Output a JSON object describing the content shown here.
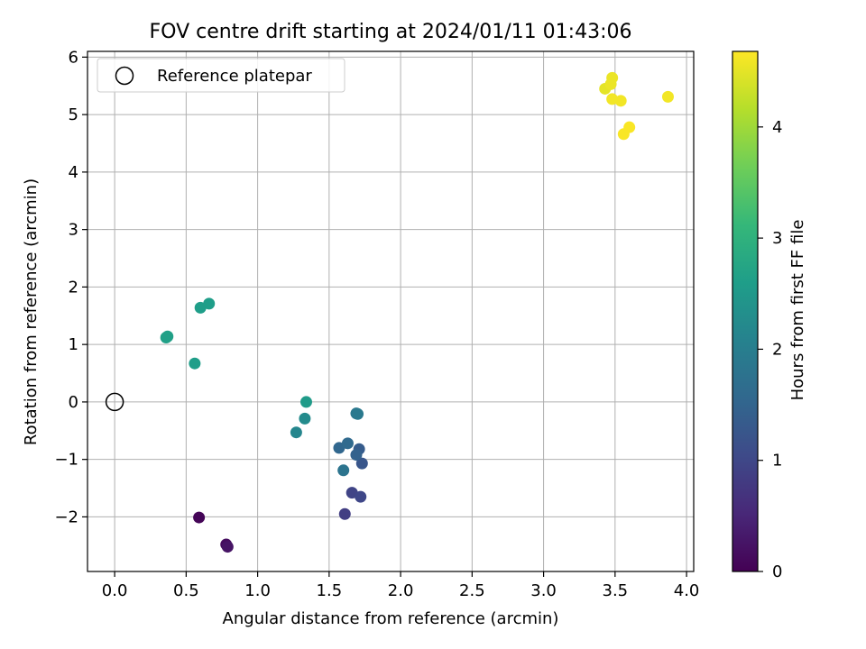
{
  "chart_data": {
    "type": "scatter",
    "title": "FOV centre drift starting at 2024/01/11 01:43:06",
    "xlabel": "Angular distance from reference (arcmin)",
    "ylabel": "Rotation from reference (arcmin)",
    "xlim": [
      -0.19,
      4.05
    ],
    "ylim": [
      -2.95,
      6.1
    ],
    "xticks": [
      0.0,
      0.5,
      1.0,
      1.5,
      2.0,
      2.5,
      3.0,
      3.5,
      4.0
    ],
    "xtick_labels": [
      "0.0",
      "0.5",
      "1.0",
      "1.5",
      "2.0",
      "2.5",
      "3.0",
      "3.5",
      "4.0"
    ],
    "yticks": [
      -2,
      -1,
      0,
      1,
      2,
      3,
      4,
      5,
      6
    ],
    "ytick_labels": [
      "−2",
      "−1",
      "0",
      "1",
      "2",
      "3",
      "4",
      "5",
      "6"
    ],
    "grid": true,
    "legend": {
      "location": "upper-left",
      "entries": [
        "Reference platepar"
      ]
    },
    "reference_point": {
      "x": 0.0,
      "y": 0.0,
      "label": "Reference platepar"
    },
    "colorbar": {
      "label": "Hours from first FF file",
      "range": [
        0,
        4.68
      ],
      "colormap": "viridis",
      "ticks": [
        0,
        1,
        2,
        3,
        4
      ],
      "tick_labels": [
        "0",
        "1",
        "2",
        "3",
        "4"
      ]
    },
    "points": [
      {
        "x": 0.59,
        "y": -2.01,
        "c": 0.05
      },
      {
        "x": 0.78,
        "y": -2.48,
        "c": 0.15
      },
      {
        "x": 0.79,
        "y": -2.52,
        "c": 0.25
      },
      {
        "x": 1.61,
        "y": -1.95,
        "c": 0.85
      },
      {
        "x": 1.66,
        "y": -1.58,
        "c": 0.95
      },
      {
        "x": 1.72,
        "y": -1.65,
        "c": 1.0
      },
      {
        "x": 1.73,
        "y": -1.07,
        "c": 1.25
      },
      {
        "x": 1.71,
        "y": -0.82,
        "c": 1.35
      },
      {
        "x": 1.69,
        "y": -0.92,
        "c": 1.45
      },
      {
        "x": 1.57,
        "y": -0.8,
        "c": 1.55
      },
      {
        "x": 1.63,
        "y": -0.72,
        "c": 1.6
      },
      {
        "x": 1.6,
        "y": -1.19,
        "c": 1.8
      },
      {
        "x": 1.69,
        "y": -0.2,
        "c": 1.85
      },
      {
        "x": 1.7,
        "y": -0.21,
        "c": 1.9
      },
      {
        "x": 1.27,
        "y": -0.53,
        "c": 2.15
      },
      {
        "x": 1.33,
        "y": -0.29,
        "c": 2.25
      },
      {
        "x": 1.34,
        "y": 0.0,
        "c": 2.55
      },
      {
        "x": 0.36,
        "y": 1.12,
        "c": 2.65
      },
      {
        "x": 0.37,
        "y": 1.14,
        "c": 2.65
      },
      {
        "x": 0.56,
        "y": 0.67,
        "c": 2.6
      },
      {
        "x": 0.6,
        "y": 1.64,
        "c": 2.6
      },
      {
        "x": 0.66,
        "y": 1.71,
        "c": 2.6
      },
      {
        "x": 3.43,
        "y": 5.45,
        "c": 4.5
      },
      {
        "x": 3.47,
        "y": 5.53,
        "c": 4.55
      },
      {
        "x": 3.48,
        "y": 5.64,
        "c": 4.55
      },
      {
        "x": 3.48,
        "y": 5.27,
        "c": 4.6
      },
      {
        "x": 3.54,
        "y": 5.24,
        "c": 4.6
      },
      {
        "x": 3.87,
        "y": 5.31,
        "c": 4.6
      },
      {
        "x": 3.6,
        "y": 4.78,
        "c": 4.65
      },
      {
        "x": 3.56,
        "y": 4.66,
        "c": 4.65
      }
    ]
  }
}
